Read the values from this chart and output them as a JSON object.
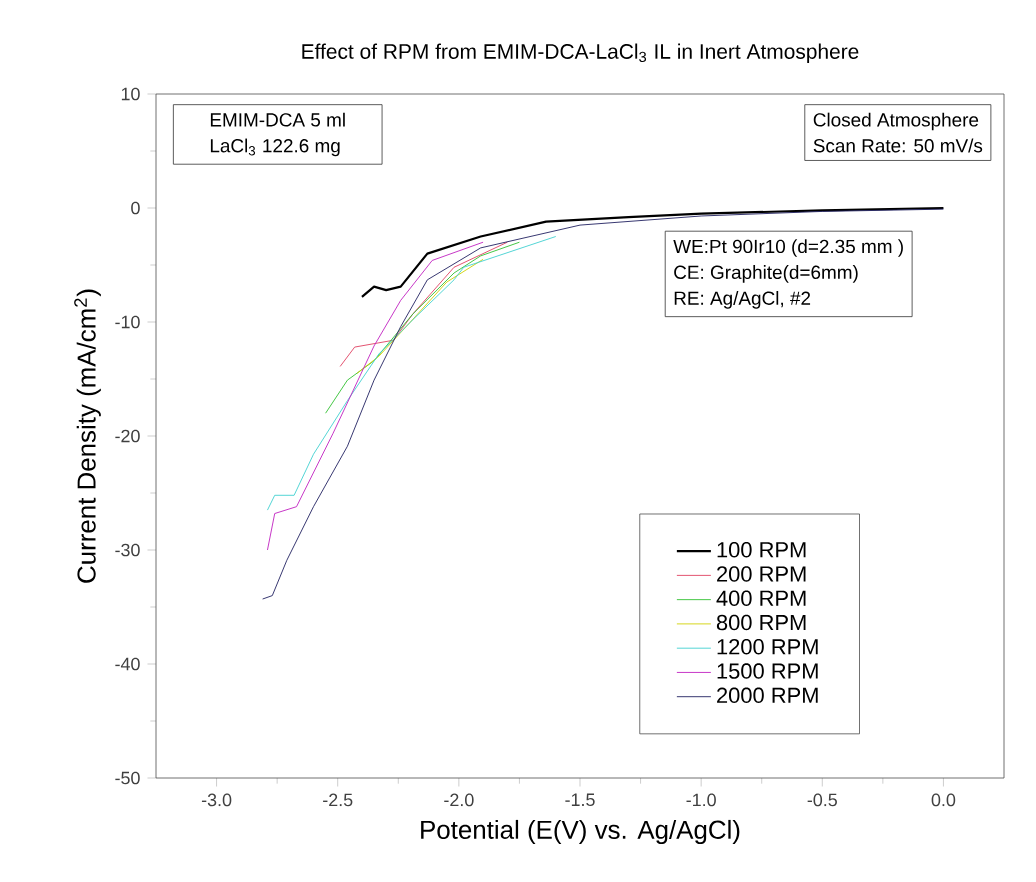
{
  "chart_data": {
    "type": "line",
    "title": "Effect of RPM from EMIM-DCA-LaCl$_{3}$ IL in Inert Atmosphere",
    "xlabel": "Potential (E(V) vs. Ag/AgCl)",
    "ylabel": "Current Density (mA/cm$^{2}$)",
    "xlim": [
      -3.25,
      0.25
    ],
    "ylim": [
      -50,
      10
    ],
    "xticks": [
      {
        "value": -3,
        "label": "-3.0"
      },
      {
        "value": -2.5,
        "label": "-2.5"
      },
      {
        "value": -2,
        "label": "-2.0"
      },
      {
        "value": -1.5,
        "label": "-1.5"
      },
      {
        "value": -1,
        "label": "-1.0"
      },
      {
        "value": -0.5,
        "label": "-0.5"
      },
      {
        "value": 0,
        "label": "0.0"
      }
    ],
    "yticks": [
      -50,
      -40,
      -30,
      -20,
      -10,
      0,
      10
    ],
    "grid": false,
    "legend": "right",
    "marker": "none",
    "line_style": "solid",
    "annotations": [
      "EMIM-DCA  5 ml",
      "LaCl$_{3}$      122.6 mg",
      "Closed Atmosphere",
      "Scan Rate: 50 mV/s",
      "WE:Pt 90Ir10 (d=2.35 mm )",
      "CE: Graphite(d=6mm)",
      "RE: Ag/AgCl, #2"
    ],
    "series": [
      {
        "name": "100 RPM",
        "color": "#000000",
        "x": [
          -2.4,
          -2.35,
          -2.3,
          -2.24,
          -2.13,
          -1.91,
          -1.64,
          -1.3,
          -1.0,
          -0.5,
          0
        ],
        "values": [
          -7.8,
          -6.9,
          -7.2,
          -6.9,
          -4.0,
          -2.5,
          -1.2,
          -0.8,
          -0.5,
          -0.2,
          0
        ]
      },
      {
        "name": "200 RPM",
        "color": "#e04060",
        "x": [
          -2.49,
          -2.43,
          -2.35,
          -2.27,
          -2.19,
          -2.02,
          -1.8
        ],
        "values": [
          -13.9,
          -12.2,
          -11.9,
          -11.6,
          -9.3,
          -5.2,
          -3.0
        ]
      },
      {
        "name": "400 RPM",
        "color": "#30c030",
        "x": [
          -2.55,
          -2.46,
          -2.35,
          -2.19,
          -2.02,
          -1.91,
          -1.75
        ],
        "values": [
          -18.0,
          -15.1,
          -13.4,
          -9.3,
          -5.7,
          -4.2,
          -3.0
        ]
      },
      {
        "name": "800 RPM",
        "color": "#d0d000",
        "x": [
          -2.42,
          -2.33,
          -2.2,
          -2.05,
          -1.9
        ],
        "values": [
          -14.5,
          -13.0,
          -10.0,
          -6.5,
          -4.5
        ]
      },
      {
        "name": "1200 RPM",
        "color": "#40d0d0",
        "x": [
          -2.79,
          -2.76,
          -2.68,
          -2.6,
          -2.46,
          -2.33,
          -2.19,
          -2.02,
          -1.98,
          -1.6
        ],
        "values": [
          -26.5,
          -25.2,
          -25.2,
          -21.6,
          -16.9,
          -12.8,
          -9.8,
          -6.3,
          -5.2,
          -2.5
        ]
      },
      {
        "name": "1500 RPM",
        "color": "#c020c0",
        "x": [
          -2.79,
          -2.76,
          -2.67,
          -2.52,
          -2.35,
          -2.24,
          -2.11,
          -1.9
        ],
        "values": [
          -30.0,
          -26.8,
          -26.2,
          -19.8,
          -12.1,
          -8.1,
          -4.6,
          -3.0
        ]
      },
      {
        "name": "2000 RPM",
        "color": "#202060",
        "x": [
          -2.81,
          -2.77,
          -2.71,
          -2.6,
          -2.46,
          -2.35,
          -2.24,
          -2.13,
          -1.91,
          -1.5,
          -1.0,
          -0.5,
          0
        ],
        "values": [
          -34.3,
          -34.0,
          -30.9,
          -26.2,
          -20.9,
          -15.1,
          -10.4,
          -6.3,
          -3.5,
          -1.5,
          -0.7,
          -0.3,
          -0.1
        ]
      }
    ]
  }
}
